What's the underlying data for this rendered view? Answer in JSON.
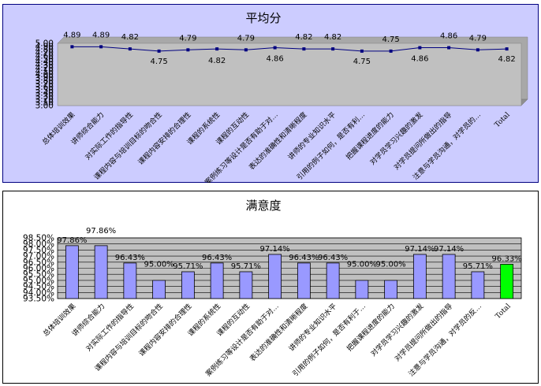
{
  "chart_data": [
    {
      "type": "line",
      "title": "平均分",
      "categories": [
        "总体培训效果",
        "讲师综合能力",
        "对实际工作的指导性",
        "课程内容与培训目标的吻合性",
        "课程内容安排的合理性",
        "课程的系统性",
        "课程的互动性",
        "案例练习等设计是否有助于对…",
        "表达的准确性和清晰程度",
        "讲师的专业知识水平",
        "引用的例子如何，是否有利…",
        "把握课程进度的能力",
        "对学员学习兴趣的激发",
        "对学员提问所做出的指导",
        "注意与学员沟通，对学员的…",
        "Total"
      ],
      "values": [
        4.89,
        4.89,
        4.82,
        4.75,
        4.79,
        4.82,
        4.79,
        4.86,
        4.82,
        4.82,
        4.75,
        4.75,
        4.86,
        4.86,
        4.79,
        4.82
      ],
      "data_labels": [
        "4.89",
        "4.89",
        "4.82",
        "4.75",
        "4.79",
        "4.82",
        "4.79",
        "4.86",
        "4.82",
        "4.82",
        "4.75",
        "4.75",
        "4.86",
        "4.86",
        "4.79",
        "4.82"
      ],
      "ylim": [
        3.0,
        5.0
      ],
      "yticks": [
        "3.00",
        "3.10",
        "3.20",
        "3.30",
        "3.40",
        "3.50",
        "3.60",
        "3.70",
        "3.80",
        "3.90",
        "4.00",
        "4.10",
        "4.20",
        "4.30",
        "4.40",
        "4.50",
        "4.60",
        "4.70",
        "4.80",
        "4.90",
        "5.00"
      ],
      "xlabel": "",
      "ylabel": "",
      "grid": false,
      "legend": "none",
      "colors": {
        "line": "#000080",
        "plot_bg": "#c0c0c0",
        "frame_bg": "#ccccff",
        "frame_border": "#000080"
      }
    },
    {
      "type": "bar",
      "title": "满意度",
      "categories": [
        "总体培训效果",
        "讲师综合能力",
        "对实际工作的指导性",
        "课程内容与培训目标的吻合性",
        "课程内容安排的合理性",
        "课程的系统性",
        "课程的互动性",
        "案例练习等设计是否有助于对…",
        "表达的准确性和清晰程度",
        "讲师的专业知识水平",
        "引用的例子如何，是否有利于…",
        "把握课程进度的能力",
        "对学员学习兴趣的激发",
        "对学员提问所做出的指导",
        "注意与学员沟通，对学员的反…",
        "Total"
      ],
      "values": [
        97.86,
        97.86,
        96.43,
        95.0,
        95.71,
        96.43,
        95.71,
        97.14,
        96.43,
        96.43,
        95.0,
        95.0,
        97.14,
        97.14,
        95.71,
        96.33
      ],
      "data_labels": [
        "97.86%",
        "97.86%",
        "96.43%",
        "95.00%",
        "95.71%",
        "96.43%",
        "95.71%",
        "97.14%",
        "96.43%",
        "96.43%",
        "95.00%",
        "95.00%",
        "97.14%",
        "97.14%",
        "95.71%",
        "96.33%"
      ],
      "ylim": [
        93.5,
        98.5
      ],
      "yticks": [
        "93.50%",
        "94.00%",
        "94.50%",
        "95.00%",
        "95.50%",
        "96.00%",
        "96.50%",
        "97.00%",
        "97.50%",
        "98.00%",
        "98.50%"
      ],
      "xlabel": "",
      "ylabel": "",
      "grid": true,
      "legend": "none",
      "colors": {
        "bar": "#9999ff",
        "total_bar": "#00ff00",
        "plot_bg": "#c0c0c0",
        "frame_bg": "#ffffff",
        "frame_border": "#000000"
      }
    }
  ]
}
